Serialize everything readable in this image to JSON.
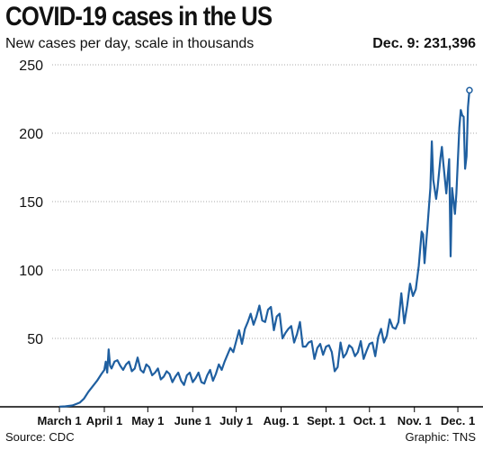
{
  "colors": {
    "line": "#1f5fa0",
    "grid": "#aaaaaa",
    "axis": "#000000"
  },
  "footer": {
    "source": "Source: CDC",
    "credit": "Graphic: TNS"
  },
  "chart_data": {
    "type": "line",
    "title": "COVID-19 cases in the US",
    "subtitle": "New cases per day, scale in thousands",
    "annotation": "Dec. 9: 231,396",
    "xlabel": "",
    "ylabel": "",
    "ylim": [
      0,
      250
    ],
    "yticks": [
      50,
      100,
      150,
      200,
      250
    ],
    "xlim": [
      "2020-02-25",
      "2020-12-14"
    ],
    "xticks": [
      {
        "label": "March 1",
        "date": "2020-03-01"
      },
      {
        "label": "April 1",
        "date": "2020-04-01"
      },
      {
        "label": "May  1",
        "date": "2020-05-01"
      },
      {
        "label": "June 1",
        "date": "2020-06-01"
      },
      {
        "label": "July 1",
        "date": "2020-07-01"
      },
      {
        "label": "Aug. 1",
        "date": "2020-08-01"
      },
      {
        "label": "Sept. 1",
        "date": "2020-09-01"
      },
      {
        "label": "Oct. 1",
        "date": "2020-10-01"
      },
      {
        "label": "Nov. 1",
        "date": "2020-11-01"
      },
      {
        "label": "Dec. 1",
        "date": "2020-12-01"
      }
    ],
    "grid": "horizontal",
    "series": [
      {
        "name": "",
        "points": [
          [
            "2020-03-01",
            0.1
          ],
          [
            "2020-03-05",
            0.3
          ],
          [
            "2020-03-10",
            1
          ],
          [
            "2020-03-15",
            3
          ],
          [
            "2020-03-18",
            6
          ],
          [
            "2020-03-21",
            11
          ],
          [
            "2020-03-24",
            15
          ],
          [
            "2020-03-27",
            19
          ],
          [
            "2020-03-30",
            24
          ],
          [
            "2020-04-01",
            27
          ],
          [
            "2020-04-02",
            33
          ],
          [
            "2020-04-03",
            25
          ],
          [
            "2020-04-04",
            42
          ],
          [
            "2020-04-05",
            30
          ],
          [
            "2020-04-06",
            28
          ],
          [
            "2020-04-08",
            33
          ],
          [
            "2020-04-10",
            34
          ],
          [
            "2020-04-12",
            30
          ],
          [
            "2020-04-14",
            27
          ],
          [
            "2020-04-16",
            31
          ],
          [
            "2020-04-18",
            33
          ],
          [
            "2020-04-20",
            26
          ],
          [
            "2020-04-22",
            28
          ],
          [
            "2020-04-24",
            36
          ],
          [
            "2020-04-26",
            27
          ],
          [
            "2020-04-28",
            25
          ],
          [
            "2020-04-30",
            31
          ],
          [
            "2020-05-02",
            29
          ],
          [
            "2020-05-04",
            23
          ],
          [
            "2020-05-06",
            25
          ],
          [
            "2020-05-08",
            28
          ],
          [
            "2020-05-10",
            20
          ],
          [
            "2020-05-12",
            22
          ],
          [
            "2020-05-14",
            26
          ],
          [
            "2020-05-16",
            24
          ],
          [
            "2020-05-18",
            18
          ],
          [
            "2020-05-20",
            22
          ],
          [
            "2020-05-22",
            25
          ],
          [
            "2020-05-24",
            19
          ],
          [
            "2020-05-26",
            16
          ],
          [
            "2020-05-28",
            23
          ],
          [
            "2020-05-30",
            25
          ],
          [
            "2020-06-01",
            18
          ],
          [
            "2020-06-03",
            21
          ],
          [
            "2020-06-05",
            25
          ],
          [
            "2020-06-07",
            18
          ],
          [
            "2020-06-09",
            17
          ],
          [
            "2020-06-11",
            23
          ],
          [
            "2020-06-13",
            27
          ],
          [
            "2020-06-15",
            19
          ],
          [
            "2020-06-17",
            24
          ],
          [
            "2020-06-19",
            31
          ],
          [
            "2020-06-21",
            27
          ],
          [
            "2020-06-23",
            33
          ],
          [
            "2020-06-25",
            38
          ],
          [
            "2020-06-27",
            43
          ],
          [
            "2020-06-29",
            40
          ],
          [
            "2020-07-01",
            48
          ],
          [
            "2020-07-03",
            56
          ],
          [
            "2020-07-05",
            46
          ],
          [
            "2020-07-07",
            57
          ],
          [
            "2020-07-09",
            62
          ],
          [
            "2020-07-11",
            68
          ],
          [
            "2020-07-13",
            60
          ],
          [
            "2020-07-15",
            66
          ],
          [
            "2020-07-17",
            74
          ],
          [
            "2020-07-19",
            63
          ],
          [
            "2020-07-21",
            62
          ],
          [
            "2020-07-23",
            71
          ],
          [
            "2020-07-25",
            73
          ],
          [
            "2020-07-27",
            56
          ],
          [
            "2020-07-29",
            66
          ],
          [
            "2020-07-31",
            68
          ],
          [
            "2020-08-02",
            50
          ],
          [
            "2020-08-04",
            54
          ],
          [
            "2020-08-06",
            57
          ],
          [
            "2020-08-08",
            59
          ],
          [
            "2020-08-10",
            47
          ],
          [
            "2020-08-12",
            53
          ],
          [
            "2020-08-14",
            62
          ],
          [
            "2020-08-16",
            44
          ],
          [
            "2020-08-18",
            44
          ],
          [
            "2020-08-20",
            47
          ],
          [
            "2020-08-22",
            48
          ],
          [
            "2020-08-24",
            35
          ],
          [
            "2020-08-26",
            43
          ],
          [
            "2020-08-28",
            46
          ],
          [
            "2020-08-30",
            38
          ],
          [
            "2020-09-01",
            44
          ],
          [
            "2020-09-03",
            45
          ],
          [
            "2020-09-05",
            40
          ],
          [
            "2020-09-07",
            26
          ],
          [
            "2020-09-09",
            29
          ],
          [
            "2020-09-11",
            47
          ],
          [
            "2020-09-13",
            36
          ],
          [
            "2020-09-15",
            39
          ],
          [
            "2020-09-17",
            45
          ],
          [
            "2020-09-19",
            43
          ],
          [
            "2020-09-21",
            37
          ],
          [
            "2020-09-23",
            40
          ],
          [
            "2020-09-25",
            48
          ],
          [
            "2020-09-27",
            35
          ],
          [
            "2020-09-29",
            41
          ],
          [
            "2020-10-01",
            46
          ],
          [
            "2020-10-03",
            47
          ],
          [
            "2020-10-05",
            37
          ],
          [
            "2020-10-07",
            51
          ],
          [
            "2020-10-09",
            57
          ],
          [
            "2020-10-11",
            47
          ],
          [
            "2020-10-13",
            52
          ],
          [
            "2020-10-15",
            64
          ],
          [
            "2020-10-17",
            58
          ],
          [
            "2020-10-19",
            57
          ],
          [
            "2020-10-21",
            62
          ],
          [
            "2020-10-23",
            83
          ],
          [
            "2020-10-25",
            61
          ],
          [
            "2020-10-27",
            74
          ],
          [
            "2020-10-29",
            90
          ],
          [
            "2020-10-31",
            81
          ],
          [
            "2020-11-02",
            86
          ],
          [
            "2020-11-04",
            103
          ],
          [
            "2020-11-06",
            128
          ],
          [
            "2020-11-07",
            126
          ],
          [
            "2020-11-08",
            105
          ],
          [
            "2020-11-10",
            131
          ],
          [
            "2020-11-12",
            160
          ],
          [
            "2020-11-13",
            194
          ],
          [
            "2020-11-14",
            166
          ],
          [
            "2020-11-16",
            152
          ],
          [
            "2020-11-17",
            160
          ],
          [
            "2020-11-19",
            182
          ],
          [
            "2020-11-20",
            190
          ],
          [
            "2020-11-21",
            178
          ],
          [
            "2020-11-23",
            156
          ],
          [
            "2020-11-25",
            181
          ],
          [
            "2020-11-26",
            110
          ],
          [
            "2020-11-27",
            160
          ],
          [
            "2020-11-28",
            151
          ],
          [
            "2020-11-29",
            141
          ],
          [
            "2020-11-30",
            156
          ],
          [
            "2020-12-02",
            204
          ],
          [
            "2020-12-03",
            217
          ],
          [
            "2020-12-04",
            213
          ],
          [
            "2020-12-05",
            212
          ],
          [
            "2020-12-06",
            174
          ],
          [
            "2020-12-07",
            183
          ],
          [
            "2020-12-08",
            219
          ],
          [
            "2020-12-09",
            231.4
          ]
        ]
      }
    ]
  }
}
